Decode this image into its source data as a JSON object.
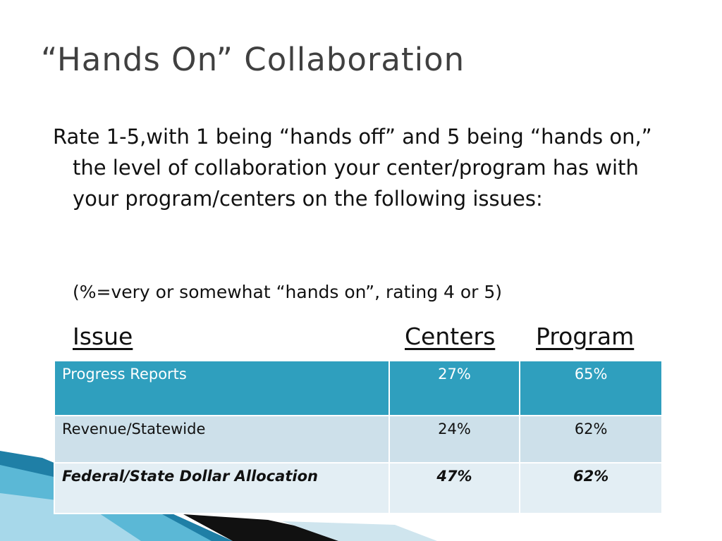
{
  "title": "“Hands On” Collaboration",
  "body": "Rate 1-5,with 1 being “hands off” and 5 being “hands on,” the level of collaboration your center/program has with your program/centers on the following issues:",
  "note": "(%=very or somewhat “hands on”, rating 4 or 5)",
  "table": {
    "headers": [
      "Issue",
      "Centers",
      "Program"
    ],
    "rows": [
      [
        "Progress Reports",
        "27%",
        "65%"
      ],
      [
        "Revenue/Statewide",
        "24%",
        "62%"
      ],
      [
        "Federal/State Dollar Allocation",
        "47%",
        "62%"
      ]
    ]
  }
}
